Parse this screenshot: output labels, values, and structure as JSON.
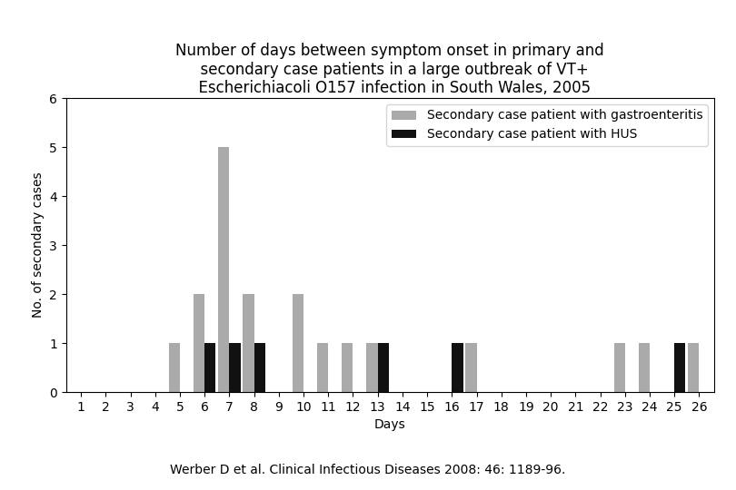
{
  "chart_data": {
    "type": "bar",
    "title": "Number of days between symptom onset in primary and\n  secondary case patients in a large outbreak of VT+\n  Escherichiacoli O157 infection in South Wales, 2005",
    "x": [
      1,
      2,
      3,
      4,
      5,
      6,
      7,
      8,
      9,
      10,
      11,
      12,
      13,
      14,
      15,
      16,
      17,
      18,
      19,
      20,
      21,
      22,
      23,
      24,
      25,
      26
    ],
    "series": [
      {
        "name": "Secondary case patient with gastroenteritis",
        "color": "#aaaaaa",
        "values": [
          0,
          0,
          0,
          0,
          1,
          2,
          5,
          2,
          0,
          2,
          1,
          1,
          1,
          0,
          0,
          0,
          1,
          0,
          0,
          0,
          0,
          0,
          1,
          1,
          0,
          1
        ]
      },
      {
        "name": "Secondary case patient with HUS",
        "color": "#111111",
        "values": [
          0,
          0,
          0,
          0,
          0,
          1,
          1,
          1,
          0,
          0,
          0,
          0,
          1,
          0,
          0,
          1,
          0,
          0,
          0,
          0,
          0,
          0,
          0,
          0,
          1,
          0
        ]
      }
    ],
    "xlabel": "Days",
    "ylabel": "No. of secondary cases",
    "xlim": [
      0.4,
      26.6
    ],
    "xticks": [
      1,
      2,
      3,
      4,
      5,
      6,
      7,
      8,
      9,
      10,
      11,
      12,
      13,
      14,
      15,
      16,
      17,
      18,
      19,
      20,
      21,
      22,
      23,
      24,
      25,
      26
    ],
    "ylim": [
      0,
      6
    ],
    "yticks": [
      0,
      1,
      2,
      3,
      4,
      5,
      6
    ],
    "legend": "upper right",
    "annotations": [
      "Werber D et al. Clinical Infectious Diseases 2008: 46: 1189-96."
    ]
  }
}
